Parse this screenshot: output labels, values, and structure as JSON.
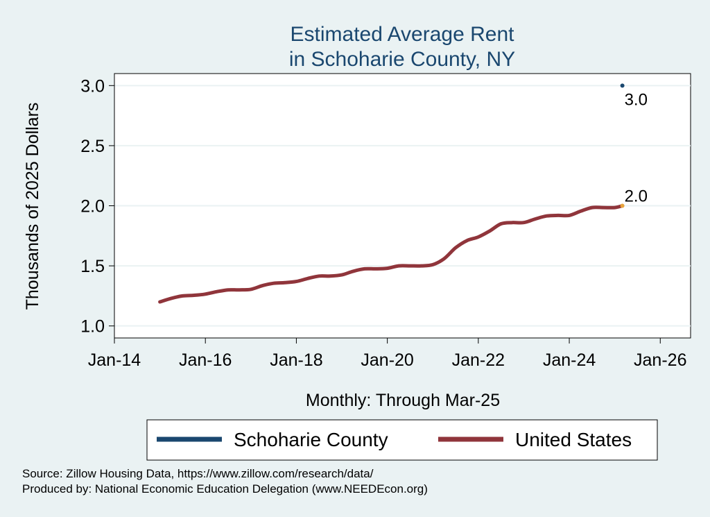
{
  "chart_data": {
    "type": "line",
    "title": [
      "Estimated Average Rent",
      "in Schoharie County, NY"
    ],
    "xlabel": "Monthly: Through Mar-25",
    "ylabel": "Thousands of 2025 Dollars",
    "xlim": [
      "2014-01",
      "2026-09"
    ],
    "ylim": [
      0.9,
      3.1
    ],
    "x_ticks": [
      {
        "date": "2014-01",
        "label": "Jan-14"
      },
      {
        "date": "2016-01",
        "label": "Jan-16"
      },
      {
        "date": "2018-01",
        "label": "Jan-18"
      },
      {
        "date": "2020-01",
        "label": "Jan-20"
      },
      {
        "date": "2022-01",
        "label": "Jan-22"
      },
      {
        "date": "2024-01",
        "label": "Jan-24"
      },
      {
        "date": "2026-01",
        "label": "Jan-26"
      }
    ],
    "y_ticks": [
      {
        "value": 1.0,
        "label": "1.0"
      },
      {
        "value": 1.5,
        "label": "1.5"
      },
      {
        "value": 2.0,
        "label": "2.0"
      },
      {
        "value": 2.5,
        "label": "2.5"
      },
      {
        "value": 3.0,
        "label": "3.0"
      }
    ],
    "grid": true,
    "legend_position": "bottom",
    "series": [
      {
        "name": "Schoharie County",
        "color": "#1a476f",
        "points": [
          [
            "2025-03",
            3.0
          ]
        ],
        "end_label": "3.0"
      },
      {
        "name": "United States",
        "color": "#90353b",
        "end_color": "#e8a33c",
        "end_label": "2.0",
        "points": [
          [
            "2015-01",
            1.2
          ],
          [
            "2015-04",
            1.23
          ],
          [
            "2015-07",
            1.25
          ],
          [
            "2015-10",
            1.255
          ],
          [
            "2016-01",
            1.265
          ],
          [
            "2016-04",
            1.285
          ],
          [
            "2016-07",
            1.3
          ],
          [
            "2016-10",
            1.3
          ],
          [
            "2017-01",
            1.305
          ],
          [
            "2017-04",
            1.335
          ],
          [
            "2017-07",
            1.355
          ],
          [
            "2017-10",
            1.36
          ],
          [
            "2018-01",
            1.37
          ],
          [
            "2018-04",
            1.395
          ],
          [
            "2018-07",
            1.415
          ],
          [
            "2018-10",
            1.415
          ],
          [
            "2019-01",
            1.425
          ],
          [
            "2019-04",
            1.455
          ],
          [
            "2019-07",
            1.475
          ],
          [
            "2019-10",
            1.475
          ],
          [
            "2020-01",
            1.48
          ],
          [
            "2020-04",
            1.5
          ],
          [
            "2020-07",
            1.5
          ],
          [
            "2020-10",
            1.5
          ],
          [
            "2021-01",
            1.51
          ],
          [
            "2021-04",
            1.56
          ],
          [
            "2021-07",
            1.65
          ],
          [
            "2021-10",
            1.71
          ],
          [
            "2022-01",
            1.74
          ],
          [
            "2022-04",
            1.79
          ],
          [
            "2022-07",
            1.85
          ],
          [
            "2022-10",
            1.86
          ],
          [
            "2023-01",
            1.86
          ],
          [
            "2023-04",
            1.89
          ],
          [
            "2023-07",
            1.915
          ],
          [
            "2023-10",
            1.92
          ],
          [
            "2024-01",
            1.92
          ],
          [
            "2024-04",
            1.955
          ],
          [
            "2024-07",
            1.985
          ],
          [
            "2024-10",
            1.985
          ],
          [
            "2025-01",
            1.985
          ],
          [
            "2025-03",
            2.0
          ]
        ]
      }
    ]
  },
  "notes": [
    "Source: Zillow Housing Data, https://www.zillow.com/research/data/",
    "Produced by: National Economic Education Delegation (www.NEEDEcon.org)"
  ]
}
